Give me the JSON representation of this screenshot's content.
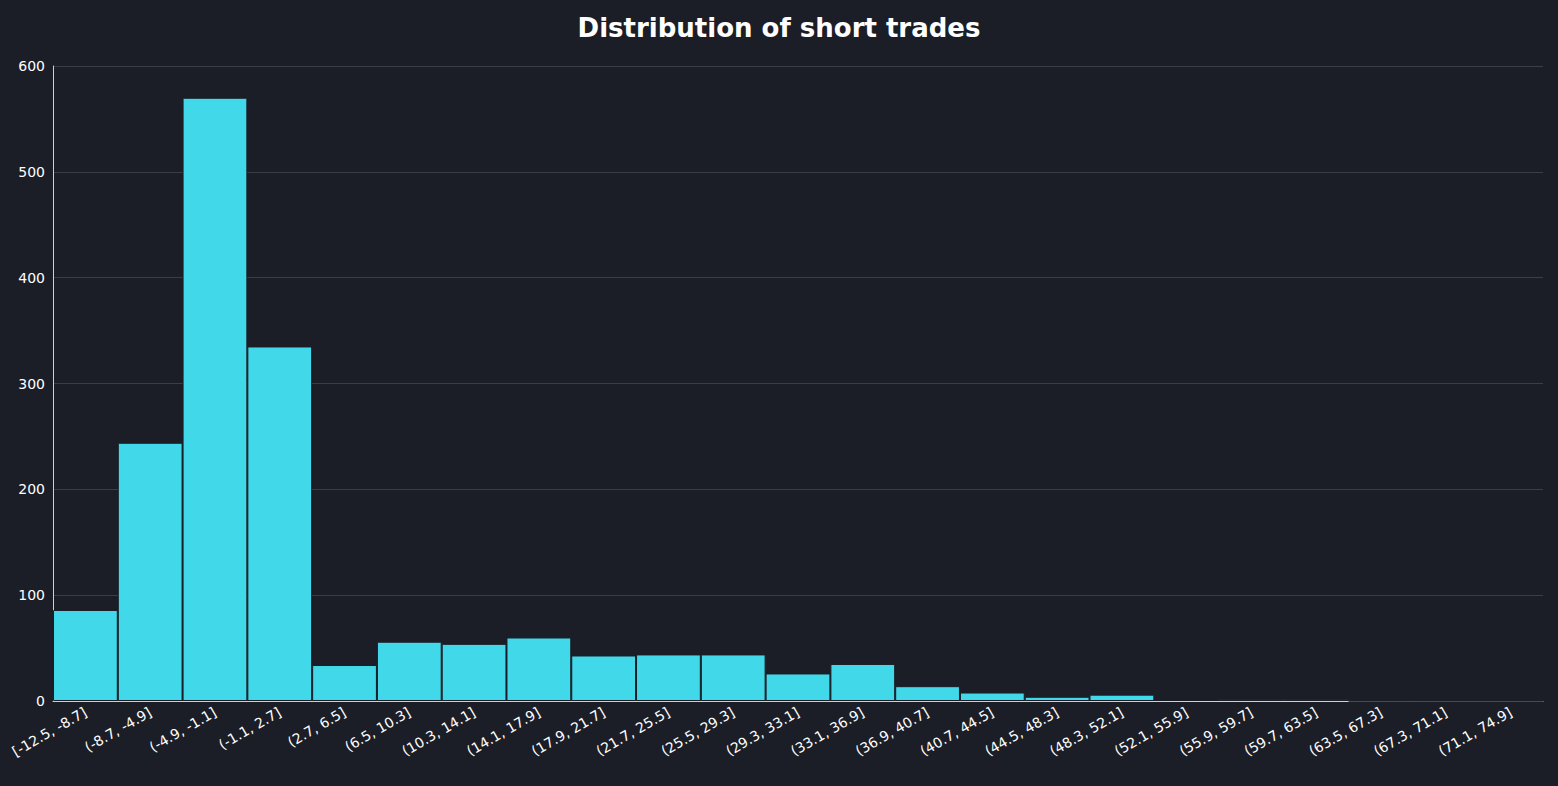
{
  "chart_data": {
    "type": "bar",
    "title": "Distribution of short trades",
    "categories": [
      "[-12.5, -8.7]",
      "(-8.7, -4.9]",
      "(-4.9, -1.1]",
      "(-1.1, 2.7]",
      "(2.7, 6.5]",
      "(6.5, 10.3]",
      "(10.3, 14.1]",
      "(14.1, 17.9]",
      "(17.9, 21.7]",
      "(21.7, 25.5]",
      "(25.5, 29.3]",
      "(29.3, 33.1]",
      "(33.1, 36.9]",
      "(36.9, 40.7]",
      "(40.7, 44.5]",
      "(44.5, 48.3]",
      "(48.3, 52.1]",
      "(52.1, 55.9]",
      "(55.9, 59.7]",
      "(59.7, 63.5]",
      "(63.5, 67.3]",
      "(67.3, 71.1]",
      "(71.1, 74.9]"
    ],
    "values": [
      86,
      244,
      570,
      335,
      34,
      56,
      54,
      60,
      43,
      44,
      44,
      26,
      35,
      14,
      8,
      4,
      6,
      1,
      2,
      2,
      0,
      0,
      0
    ],
    "color": "#41d9e9",
    "ylim": [
      0,
      600
    ],
    "yticks": [
      0,
      100,
      200,
      300,
      400,
      500,
      600
    ],
    "grid": true
  }
}
